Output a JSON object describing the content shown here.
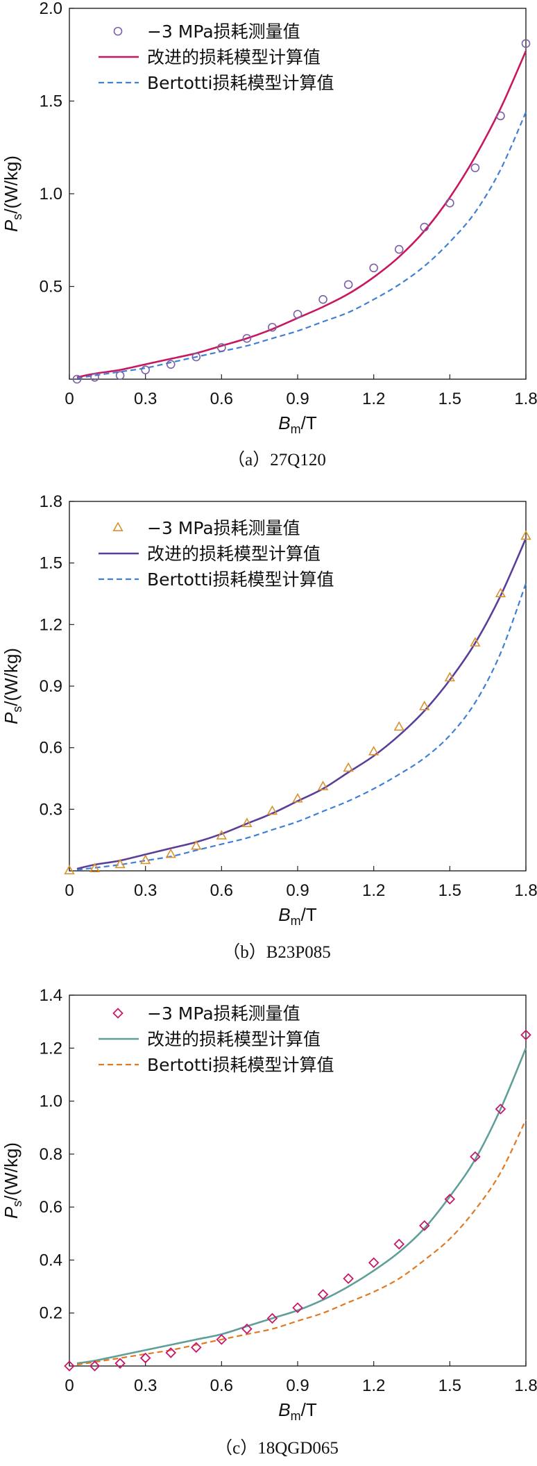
{
  "legend_labels": {
    "measured": "−3 MPa损耗测量值",
    "improved": "改进的损耗模型计算值",
    "bertotti": "Bertotti损耗模型计算值"
  },
  "ylabel": {
    "main": "P",
    "sub": "s",
    "unit": "/(W/kg)"
  },
  "xlabel": {
    "main": "B",
    "sub": "m",
    "unit": "/T"
  },
  "chart_data": [
    {
      "type": "line",
      "caption": "（a）27Q120",
      "xlim": [
        0,
        1.8
      ],
      "ylim": [
        0,
        2.0
      ],
      "x_ticks": [
        "0",
        "0.3",
        "0.6",
        "0.9",
        "1.2",
        "1.5",
        "1.8"
      ],
      "y_ticks": [
        "0.5",
        "1.0",
        "1.5",
        "2.0"
      ],
      "y_tick_values": [
        0.5,
        1.0,
        1.5,
        2.0
      ],
      "legend_position": "top-left",
      "colors": {
        "measured": "#7b5ea8",
        "improved": "#c8175f",
        "bertotti": "#3f7fd6"
      },
      "marker": "circle",
      "x_curve": [
        0.03,
        0.1,
        0.2,
        0.3,
        0.4,
        0.5,
        0.6,
        0.7,
        0.8,
        0.9,
        1.0,
        1.1,
        1.2,
        1.3,
        1.4,
        1.5,
        1.6,
        1.7,
        1.8
      ],
      "x_points": [
        0.03,
        0.1,
        0.2,
        0.3,
        0.4,
        0.5,
        0.6,
        0.7,
        0.8,
        0.9,
        1.0,
        1.1,
        1.2,
        1.3,
        1.4,
        1.5,
        1.6,
        1.7,
        1.8
      ],
      "series": [
        {
          "name": "−3 MPa损耗测量值",
          "role": "measured",
          "values": [
            0.0,
            0.01,
            0.02,
            0.05,
            0.08,
            0.12,
            0.17,
            0.22,
            0.28,
            0.35,
            0.43,
            0.51,
            0.6,
            0.7,
            0.82,
            0.95,
            1.14,
            1.42,
            1.81
          ]
        },
        {
          "name": "改进的损耗模型计算值",
          "role": "improved",
          "values": [
            0.01,
            0.03,
            0.05,
            0.08,
            0.11,
            0.14,
            0.18,
            0.22,
            0.27,
            0.33,
            0.39,
            0.46,
            0.55,
            0.66,
            0.8,
            0.98,
            1.2,
            1.46,
            1.77
          ]
        },
        {
          "name": "Bertotti损耗模型计算值",
          "role": "bertotti",
          "values": [
            0.005,
            0.02,
            0.04,
            0.06,
            0.09,
            0.12,
            0.15,
            0.18,
            0.22,
            0.26,
            0.31,
            0.36,
            0.43,
            0.51,
            0.61,
            0.74,
            0.9,
            1.13,
            1.44
          ]
        }
      ]
    },
    {
      "type": "line",
      "caption": "（b）B23P085",
      "xlim": [
        0,
        1.8
      ],
      "ylim": [
        0,
        1.8
      ],
      "x_ticks": [
        "0",
        "0.3",
        "0.6",
        "0.9",
        "1.2",
        "1.5",
        "1.8"
      ],
      "y_ticks": [
        "0.3",
        "0.6",
        "0.9",
        "1.2",
        "1.5",
        "1.8"
      ],
      "y_tick_values": [
        0.3,
        0.6,
        0.9,
        1.2,
        1.5,
        1.8
      ],
      "legend_position": "top-left",
      "colors": {
        "measured": "#d8922f",
        "improved": "#5b3d9a",
        "bertotti": "#3f7fd6"
      },
      "marker": "triangle",
      "x_curve": [
        0.03,
        0.1,
        0.2,
        0.3,
        0.4,
        0.5,
        0.6,
        0.7,
        0.8,
        0.9,
        1.0,
        1.1,
        1.2,
        1.3,
        1.4,
        1.5,
        1.6,
        1.7,
        1.8
      ],
      "x_points": [
        0.0,
        0.1,
        0.2,
        0.3,
        0.4,
        0.5,
        0.6,
        0.7,
        0.8,
        0.9,
        1.0,
        1.1,
        1.2,
        1.3,
        1.4,
        1.5,
        1.6,
        1.7,
        1.8
      ],
      "series": [
        {
          "name": "−3 MPa损耗测量值",
          "role": "measured",
          "values": [
            0.0,
            0.01,
            0.03,
            0.05,
            0.08,
            0.12,
            0.17,
            0.23,
            0.29,
            0.35,
            0.41,
            0.5,
            0.58,
            0.7,
            0.8,
            0.94,
            1.11,
            1.35,
            1.63
          ]
        },
        {
          "name": "改进的损耗模型计算值",
          "role": "improved",
          "values": [
            0.01,
            0.03,
            0.05,
            0.08,
            0.11,
            0.14,
            0.18,
            0.23,
            0.28,
            0.34,
            0.4,
            0.48,
            0.56,
            0.66,
            0.78,
            0.93,
            1.11,
            1.34,
            1.62
          ]
        },
        {
          "name": "Bertotti损耗模型计算值",
          "role": "bertotti",
          "values": [
            0.005,
            0.015,
            0.03,
            0.05,
            0.07,
            0.1,
            0.13,
            0.16,
            0.2,
            0.24,
            0.29,
            0.34,
            0.4,
            0.47,
            0.55,
            0.66,
            0.82,
            1.06,
            1.4
          ]
        }
      ]
    },
    {
      "type": "line",
      "caption": "（c）18QGD065",
      "xlim": [
        0,
        1.8
      ],
      "ylim": [
        0,
        1.4
      ],
      "x_ticks": [
        "0",
        "0.3",
        "0.6",
        "0.9",
        "1.2",
        "1.5",
        "1.8"
      ],
      "y_ticks": [
        "0.2",
        "0.4",
        "0.6",
        "0.8",
        "1.0",
        "1.2",
        "1.4"
      ],
      "y_tick_values": [
        0.2,
        0.4,
        0.6,
        0.8,
        1.0,
        1.2,
        1.4
      ],
      "legend_position": "top-left",
      "colors": {
        "measured": "#c8176a",
        "improved": "#5f9e99",
        "bertotti": "#e07a22"
      },
      "marker": "diamond",
      "x_curve": [
        0.03,
        0.1,
        0.2,
        0.3,
        0.4,
        0.5,
        0.6,
        0.7,
        0.8,
        0.9,
        1.0,
        1.1,
        1.2,
        1.3,
        1.4,
        1.5,
        1.6,
        1.7,
        1.8
      ],
      "x_points": [
        0.0,
        0.1,
        0.2,
        0.3,
        0.4,
        0.5,
        0.6,
        0.7,
        0.8,
        0.9,
        1.0,
        1.1,
        1.2,
        1.3,
        1.4,
        1.5,
        1.6,
        1.7,
        1.8
      ],
      "series": [
        {
          "name": "−3 MPa损耗测量值",
          "role": "measured",
          "values": [
            0.0,
            0.0,
            0.01,
            0.03,
            0.05,
            0.07,
            0.1,
            0.14,
            0.18,
            0.22,
            0.27,
            0.33,
            0.39,
            0.46,
            0.53,
            0.63,
            0.79,
            0.97,
            1.25
          ]
        },
        {
          "name": "改进的损耗模型计算值",
          "role": "improved",
          "values": [
            0.01,
            0.02,
            0.04,
            0.06,
            0.08,
            0.1,
            0.12,
            0.15,
            0.18,
            0.21,
            0.25,
            0.3,
            0.36,
            0.43,
            0.52,
            0.64,
            0.78,
            0.97,
            1.2
          ]
        },
        {
          "name": "Bertotti损耗模型计算值",
          "role": "bertotti",
          "values": [
            0.005,
            0.015,
            0.03,
            0.045,
            0.06,
            0.08,
            0.1,
            0.12,
            0.14,
            0.17,
            0.2,
            0.24,
            0.28,
            0.33,
            0.4,
            0.48,
            0.59,
            0.73,
            0.93
          ]
        }
      ]
    }
  ]
}
